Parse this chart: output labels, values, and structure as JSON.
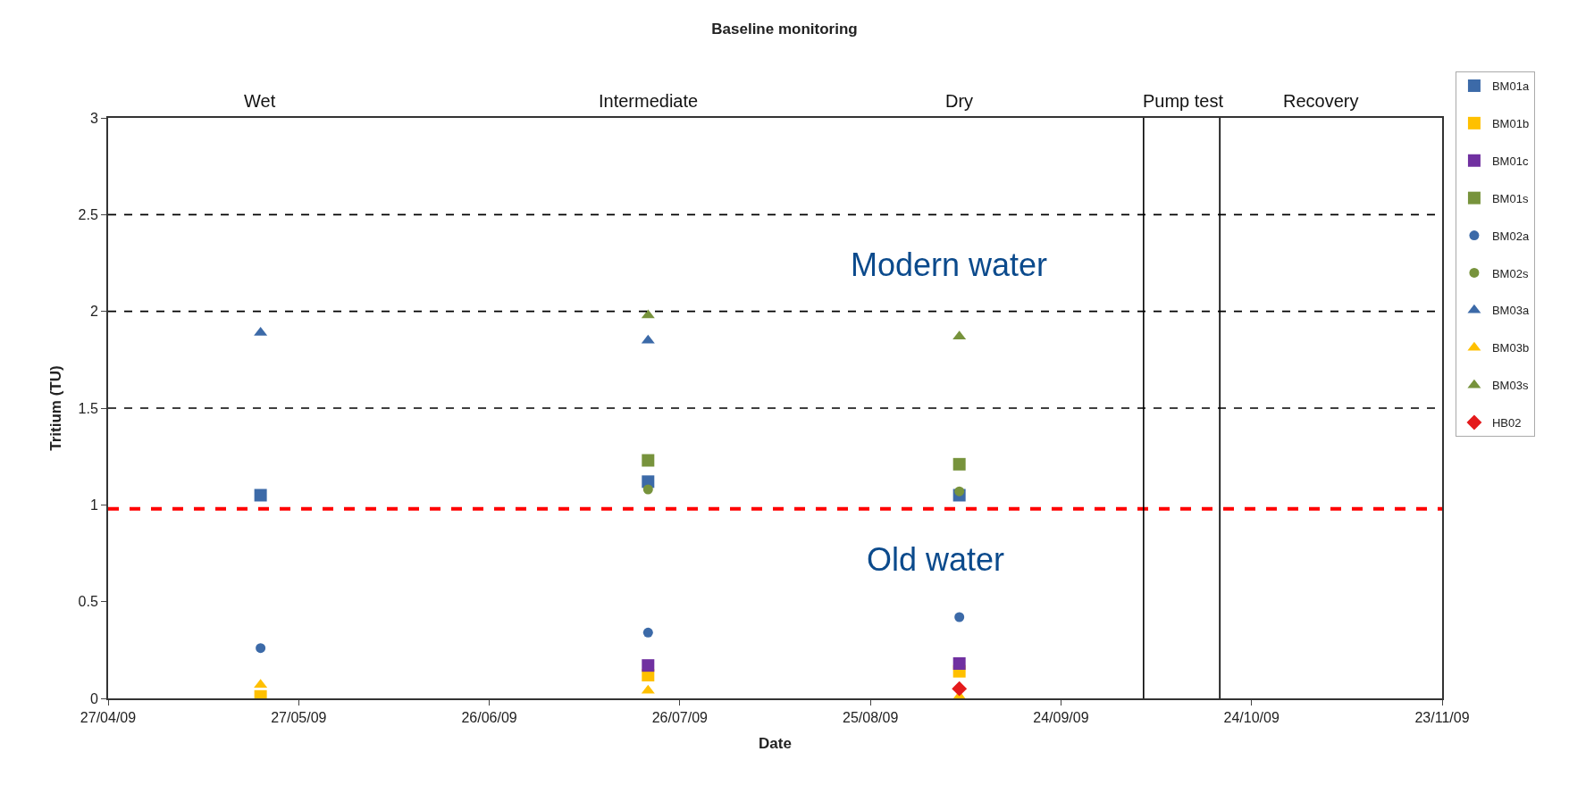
{
  "chart_data": {
    "type": "scatter",
    "title": "Baseline monitoring",
    "xlabel": "Date",
    "ylabel": "Tritium (TU)",
    "x": [
      "2009-05-21",
      "2009-07-21",
      "2009-09-08"
    ],
    "series": [
      {
        "name": "BM01a",
        "color": "#3c6aa8",
        "marker": "square",
        "values": [
          1.05,
          1.12,
          1.05
        ]
      },
      {
        "name": "BM01b",
        "color": "#ffc000",
        "marker": "square",
        "values": [
          0.01,
          0.12,
          0.14
        ]
      },
      {
        "name": "BM01c",
        "color": "#7030a0",
        "marker": "square",
        "values": [
          null,
          0.17,
          0.18
        ]
      },
      {
        "name": "BM01s",
        "color": "#77933c",
        "marker": "square",
        "values": [
          null,
          1.23,
          1.21
        ]
      },
      {
        "name": "BM02a",
        "color": "#3c6aa8",
        "marker": "circle",
        "values": [
          0.26,
          0.34,
          0.42
        ]
      },
      {
        "name": "BM02s",
        "color": "#77933c",
        "marker": "circle",
        "values": [
          null,
          1.08,
          1.07
        ]
      },
      {
        "name": "BM03a",
        "color": "#3c6aa8",
        "marker": "triangle",
        "values": [
          1.89,
          1.85,
          null
        ]
      },
      {
        "name": "BM03b",
        "color": "#ffc000",
        "marker": "triangle",
        "values": [
          0.07,
          0.04,
          0.01
        ]
      },
      {
        "name": "BM03s",
        "color": "#77933c",
        "marker": "triangle",
        "values": [
          null,
          1.98,
          1.87
        ]
      },
      {
        "name": "HB02",
        "color": "#e41a1c",
        "marker": "diamond",
        "values": [
          null,
          null,
          0.05
        ]
      }
    ],
    "xlim": [
      "2009-04-27",
      "2009-11-23"
    ],
    "xticks": [
      {
        "value": "2009-04-27",
        "label": "27/04/09"
      },
      {
        "value": "2009-05-27",
        "label": "27/05/09"
      },
      {
        "value": "2009-06-26",
        "label": "26/06/09"
      },
      {
        "value": "2009-07-26",
        "label": "26/07/09"
      },
      {
        "value": "2009-08-25",
        "label": "25/08/09"
      },
      {
        "value": "2009-09-24",
        "label": "24/09/09"
      },
      {
        "value": "2009-10-24",
        "label": "24/10/09"
      },
      {
        "value": "2009-11-23",
        "label": "23/11/09"
      }
    ],
    "ylim": [
      0,
      3
    ],
    "yticks": [
      0,
      0.5,
      1,
      1.5,
      2,
      2.5,
      3
    ],
    "ref_lines": [
      {
        "axis": "y",
        "value": 1.5,
        "color": "#000000",
        "line_style": "dashed"
      },
      {
        "axis": "y",
        "value": 2,
        "color": "#000000",
        "line_style": "dashed"
      },
      {
        "axis": "y",
        "value": 2.5,
        "color": "#000000",
        "line_style": "dashed"
      },
      {
        "axis": "y",
        "value": 0.98,
        "color": "#ff0000",
        "line_style": "dashed"
      },
      {
        "axis": "x",
        "value": "2009-10-07",
        "color": "#000000",
        "line_style": "solid"
      },
      {
        "axis": "x",
        "value": "2009-10-19",
        "color": "#000000",
        "line_style": "solid"
      }
    ],
    "annotations": [
      "Wet",
      "Intermediate",
      "Dry",
      "Pump test",
      "Recovery",
      "Modern water",
      "Old water"
    ],
    "legend": "right"
  }
}
